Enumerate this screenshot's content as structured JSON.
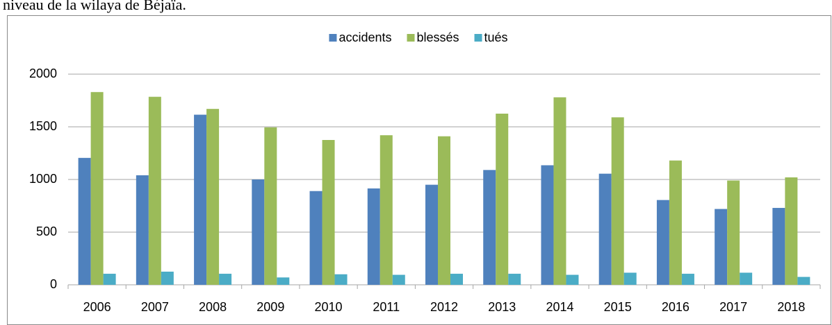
{
  "caption": "niveau de la wilaya de Béjaïa.",
  "chart_data": {
    "type": "bar",
    "categories": [
      "2006",
      "2007",
      "2008",
      "2009",
      "2010",
      "2011",
      "2012",
      "2013",
      "2014",
      "2015",
      "2016",
      "2017",
      "2018"
    ],
    "series": [
      {
        "name": "accidents",
        "color": "#4f81bd",
        "values": [
          1205,
          1040,
          1615,
          1000,
          890,
          915,
          950,
          1090,
          1135,
          1055,
          805,
          720,
          730
        ]
      },
      {
        "name": "blessés",
        "color": "#9bbb59",
        "values": [
          1830,
          1785,
          1670,
          1495,
          1375,
          1420,
          1410,
          1625,
          1780,
          1590,
          1180,
          990,
          1020
        ]
      },
      {
        "name": "tués",
        "color": "#4bacc6",
        "values": [
          105,
          125,
          105,
          70,
          100,
          95,
          105,
          105,
          95,
          115,
          105,
          115,
          75
        ]
      }
    ],
    "ylim": [
      0,
      2000
    ],
    "yticks": [
      0,
      500,
      1000,
      1500,
      2000
    ],
    "grid": true,
    "legend": "top"
  }
}
